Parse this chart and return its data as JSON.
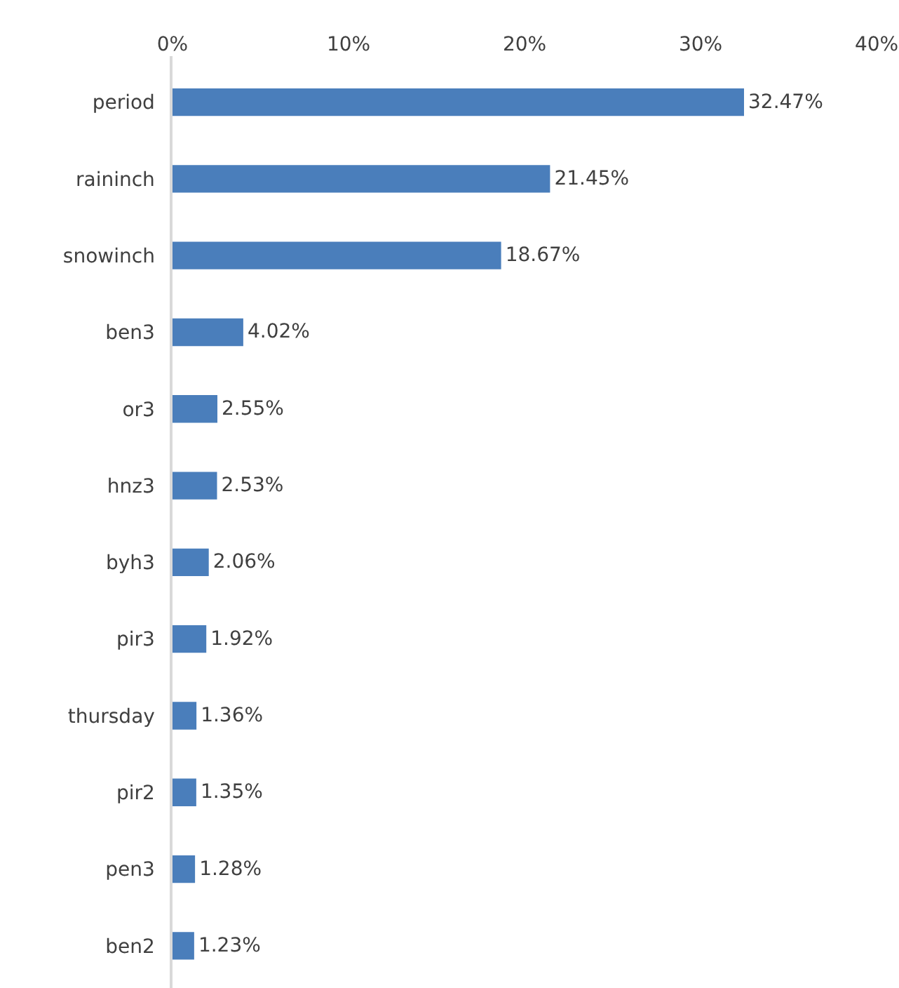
{
  "chart_data": {
    "type": "bar",
    "orientation": "horizontal",
    "categories": [
      "period",
      "raininch",
      "snowinch",
      "ben3",
      "or3",
      "hnz3",
      "byh3",
      "pir3",
      "thursday",
      "pir2",
      "pen3",
      "ben2"
    ],
    "values": [
      32.47,
      21.45,
      18.67,
      4.02,
      2.55,
      2.53,
      2.06,
      1.92,
      1.36,
      1.35,
      1.28,
      1.23
    ],
    "value_labels": [
      "32.47%",
      "21.45%",
      "18.67%",
      "4.02%",
      "2.55%",
      "2.53%",
      "2.06%",
      "1.92%",
      "1.36%",
      "1.35%",
      "1.28%",
      "1.23%"
    ],
    "color": "#4a7ebb",
    "xlim": [
      0,
      40
    ],
    "xticks": [
      {
        "value": 0,
        "label": "0%"
      },
      {
        "value": 10,
        "label": "10%"
      },
      {
        "value": 20,
        "label": "20%"
      },
      {
        "value": 30,
        "label": "30%"
      },
      {
        "value": 40,
        "label": "40%"
      }
    ]
  }
}
